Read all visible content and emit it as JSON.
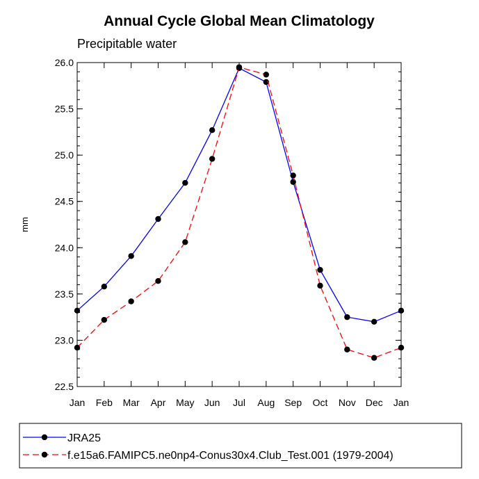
{
  "chart_data": {
    "type": "line",
    "title": "Annual Cycle Global Mean Climatology",
    "subtitle": "Precipitable water",
    "xlabel": "",
    "ylabel": "mm",
    "categories": [
      "Jan",
      "Feb",
      "Mar",
      "Apr",
      "May",
      "Jun",
      "Jul",
      "Aug",
      "Sep",
      "Oct",
      "Nov",
      "Dec",
      "Jan"
    ],
    "ylim": [
      22.5,
      26.0
    ],
    "yticks": [
      "22.5",
      "23.0",
      "23.5",
      "24.0",
      "24.5",
      "25.0",
      "25.5",
      "26.0"
    ],
    "grid": false,
    "legend_position": "bottom",
    "series": [
      {
        "name": "JRA25",
        "color": "#0000ff",
        "dash": "solid",
        "values": [
          23.32,
          23.58,
          23.91,
          24.31,
          24.7,
          25.27,
          25.94,
          25.79,
          24.71,
          23.76,
          23.25,
          23.2,
          23.32
        ]
      },
      {
        "name": "f.e15a6.FAMIPC5.ne0np4-Conus30x4.Club_Test.001 (1979-2004)",
        "color": "#ff0000",
        "dash": "dashed",
        "values": [
          22.92,
          23.22,
          23.42,
          23.64,
          24.06,
          24.96,
          25.95,
          25.87,
          24.78,
          23.59,
          22.9,
          22.81,
          22.92
        ]
      }
    ]
  }
}
